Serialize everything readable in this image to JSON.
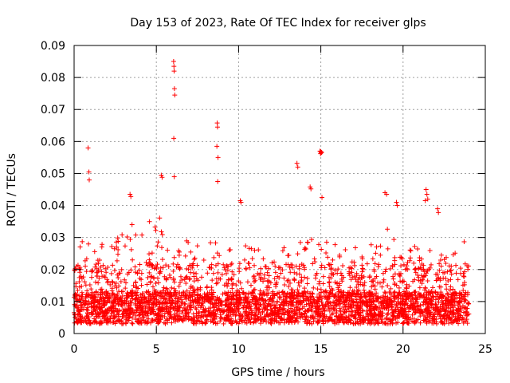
{
  "chart_data": {
    "type": "scatter",
    "title": "Day 153 of 2023, Rate Of TEC Index for receiver glps",
    "xlabel": "GPS time / hours",
    "ylabel": "ROTI / TECUs",
    "xlim": [
      0,
      25
    ],
    "ylim": [
      0,
      0.09
    ],
    "xticks": [
      0,
      5,
      10,
      15,
      20,
      25
    ],
    "xtick_labels": [
      "0",
      "5",
      "10",
      "15",
      "20",
      "25"
    ],
    "yticks": [
      0,
      0.01,
      0.02,
      0.03,
      0.04,
      0.05,
      0.06,
      0.07,
      0.08,
      0.09
    ],
    "ytick_labels": [
      "0",
      "0.01",
      "0.02",
      "0.03",
      "0.04",
      "0.05",
      "0.06",
      "0.07",
      "0.08",
      "0.09"
    ],
    "grid": true,
    "marker": "+",
    "color": "#ff0000",
    "data_range_x": [
      0,
      24
    ],
    "series": [
      {
        "name": "ROTI",
        "points": [
          [
            0.85,
            0.058
          ],
          [
            0.9,
            0.0505
          ],
          [
            0.92,
            0.048
          ],
          [
            3.4,
            0.0435
          ],
          [
            3.45,
            0.0428
          ],
          [
            5.3,
            0.0495
          ],
          [
            5.35,
            0.0488
          ],
          [
            6.05,
            0.085
          ],
          [
            6.07,
            0.0835
          ],
          [
            6.08,
            0.082
          ],
          [
            6.1,
            0.0765
          ],
          [
            6.12,
            0.0745
          ],
          [
            6.06,
            0.061
          ],
          [
            6.09,
            0.049
          ],
          [
            8.7,
            0.0658
          ],
          [
            8.72,
            0.0645
          ],
          [
            8.68,
            0.0585
          ],
          [
            8.75,
            0.055
          ],
          [
            8.73,
            0.0475
          ],
          [
            10.1,
            0.0415
          ],
          [
            10.15,
            0.041
          ],
          [
            13.55,
            0.0532
          ],
          [
            13.6,
            0.052
          ],
          [
            14.35,
            0.0458
          ],
          [
            14.4,
            0.0452
          ],
          [
            14.95,
            0.057
          ],
          [
            15.0,
            0.0568
          ],
          [
            15.02,
            0.0565
          ],
          [
            15.05,
            0.0566
          ],
          [
            14.98,
            0.0562
          ],
          [
            15.07,
            0.0425
          ],
          [
            18.9,
            0.044
          ],
          [
            19.0,
            0.0435
          ],
          [
            19.6,
            0.041
          ],
          [
            19.65,
            0.04
          ],
          [
            21.4,
            0.045
          ],
          [
            21.45,
            0.0435
          ],
          [
            21.5,
            0.042
          ],
          [
            21.35,
            0.0415
          ],
          [
            22.1,
            0.039
          ],
          [
            22.15,
            0.0378
          ]
        ]
      }
    ],
    "density_envelope": {
      "x": [
        0,
        1,
        2,
        3,
        4,
        5,
        6,
        7,
        8,
        9,
        10,
        11,
        12,
        13,
        14,
        15,
        16,
        17,
        18,
        19,
        20,
        21,
        22,
        23,
        24
      ],
      "base_low": 0.003,
      "base_high": 0.013,
      "upper": [
        0.028,
        0.03,
        0.029,
        0.035,
        0.034,
        0.037,
        0.038,
        0.028,
        0.031,
        0.03,
        0.029,
        0.027,
        0.026,
        0.028,
        0.029,
        0.03,
        0.028,
        0.027,
        0.029,
        0.033,
        0.031,
        0.028,
        0.027,
        0.026,
        0.031
      ]
    }
  }
}
